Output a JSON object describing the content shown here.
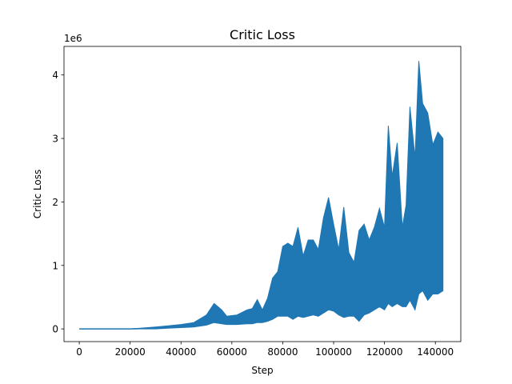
{
  "chart_data": {
    "type": "line",
    "title": "Critic Loss",
    "xlabel": "Step",
    "ylabel": "Critic Loss",
    "y_offset_label": "1e6",
    "xlim": [
      -6000,
      150000
    ],
    "ylim": [
      -0.2,
      4.45
    ],
    "x_ticks": [
      0,
      20000,
      40000,
      60000,
      80000,
      100000,
      120000,
      140000
    ],
    "y_ticks": [
      0,
      1,
      2,
      3,
      4
    ],
    "grid": false,
    "legend": "none",
    "series_color": "#1f77b4",
    "series": [
      {
        "x": [
          0,
          20000,
          24000,
          30000,
          35000,
          40000,
          45000,
          50000,
          53000,
          56000,
          58000,
          62000,
          66000,
          68000,
          70000,
          72000,
          74000,
          76000,
          78000,
          80000,
          82000,
          84000,
          86000,
          88000,
          90000,
          92000,
          94000,
          96000,
          98000,
          100000,
          102000,
          104000,
          106000,
          108000,
          110000,
          112000,
          114000,
          116000,
          118000,
          120000,
          121500,
          123000,
          125000,
          127000,
          128500,
          130000,
          132000,
          133500,
          135000,
          137000,
          139000,
          141000,
          143000
        ],
        "y_max": [
          0.0,
          0.0,
          0.01,
          0.03,
          0.05,
          0.07,
          0.1,
          0.22,
          0.4,
          0.3,
          0.2,
          0.22,
          0.3,
          0.32,
          0.46,
          0.3,
          0.48,
          0.8,
          0.9,
          1.3,
          1.35,
          1.3,
          1.6,
          1.15,
          1.4,
          1.4,
          1.25,
          1.75,
          2.07,
          1.65,
          1.25,
          1.92,
          1.2,
          1.05,
          1.55,
          1.65,
          1.4,
          1.6,
          1.9,
          1.6,
          3.2,
          2.4,
          2.93,
          1.6,
          1.95,
          3.5,
          2.7,
          4.22,
          3.55,
          3.4,
          2.9,
          3.1,
          3.0
        ],
        "y_min": [
          0.0,
          0.0,
          0.0,
          0.0,
          0.01,
          0.02,
          0.03,
          0.06,
          0.1,
          0.08,
          0.07,
          0.07,
          0.08,
          0.08,
          0.1,
          0.1,
          0.12,
          0.15,
          0.2,
          0.2,
          0.2,
          0.15,
          0.2,
          0.18,
          0.2,
          0.22,
          0.2,
          0.25,
          0.3,
          0.28,
          0.22,
          0.18,
          0.2,
          0.2,
          0.12,
          0.22,
          0.25,
          0.3,
          0.35,
          0.3,
          0.4,
          0.35,
          0.4,
          0.35,
          0.35,
          0.45,
          0.3,
          0.55,
          0.6,
          0.45,
          0.55,
          0.55,
          0.6
        ]
      }
    ]
  }
}
